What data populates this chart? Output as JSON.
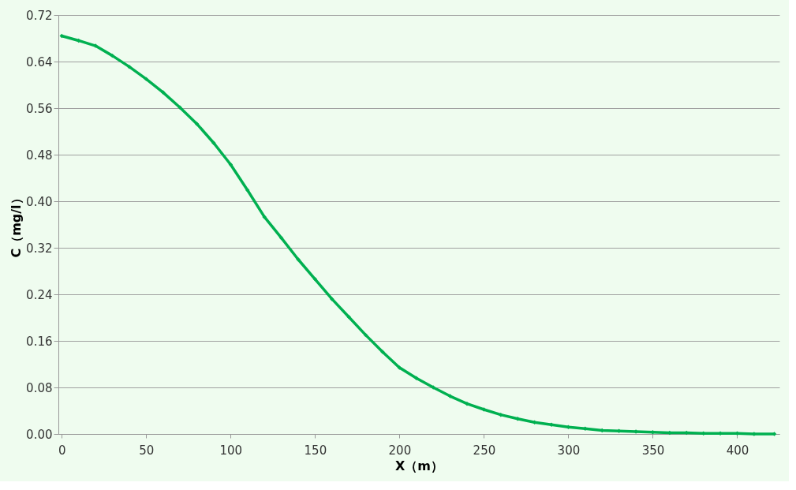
{
  "chart_data": {
    "type": "line",
    "xlabel": "X（m）",
    "ylabel": "C（mg/l）",
    "x": [
      0,
      10,
      20,
      30,
      40,
      50,
      60,
      70,
      80,
      90,
      100,
      110,
      120,
      130,
      140,
      150,
      160,
      170,
      180,
      190,
      200,
      210,
      220,
      230,
      240,
      250,
      260,
      270,
      280,
      290,
      300,
      310,
      320,
      330,
      340,
      350,
      360,
      370,
      380,
      390,
      400,
      410,
      422
    ],
    "series": [
      {
        "color": "#00b050",
        "values": [
          0.684,
          0.676,
          0.667,
          0.65,
          0.631,
          0.61,
          0.587,
          0.561,
          0.533,
          0.5,
          0.463,
          0.419,
          0.373,
          0.337,
          0.3,
          0.266,
          0.232,
          0.201,
          0.17,
          0.141,
          0.114,
          0.096,
          0.08,
          0.065,
          0.052,
          0.042,
          0.033,
          0.026,
          0.02,
          0.016,
          0.012,
          0.009,
          0.006,
          0.005,
          0.004,
          0.003,
          0.002,
          0.002,
          0.001,
          0.001,
          0.001,
          0.0,
          0.0
        ]
      }
    ],
    "xlim": [
      -2,
      425
    ],
    "xticks": [
      0,
      50,
      100,
      150,
      200,
      250,
      300,
      350,
      400
    ],
    "ylim": [
      0,
      0.72
    ],
    "yticks": [
      {
        "value": 0,
        "label": "0.00"
      },
      {
        "value": 0.08,
        "label": "0.08"
      },
      {
        "value": 0.16,
        "label": "0.16"
      },
      {
        "value": 0.24,
        "label": "0.24"
      },
      {
        "value": 0.32,
        "label": "0.32"
      },
      {
        "value": 0.4,
        "label": "0.40"
      },
      {
        "value": 0.48,
        "label": "0.48"
      },
      {
        "value": 0.56,
        "label": "0.56"
      },
      {
        "value": 0.64,
        "label": "0.64"
      },
      {
        "value": 0.72,
        "label": "0.72"
      }
    ],
    "grid": "y",
    "marker": "diamond",
    "line_style": "solid"
  }
}
